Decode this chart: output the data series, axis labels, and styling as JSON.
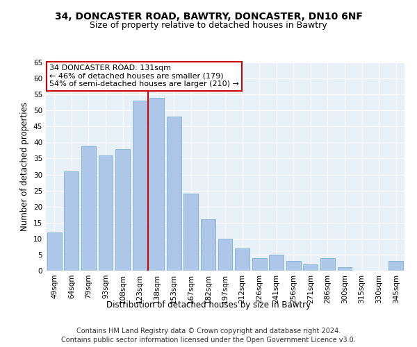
{
  "title_line1": "34, DONCASTER ROAD, BAWTRY, DONCASTER, DN10 6NF",
  "title_line2": "Size of property relative to detached houses in Bawtry",
  "xlabel": "Distribution of detached houses by size in Bawtry",
  "ylabel": "Number of detached properties",
  "categories": [
    "49sqm",
    "64sqm",
    "79sqm",
    "93sqm",
    "108sqm",
    "123sqm",
    "138sqm",
    "153sqm",
    "167sqm",
    "182sqm",
    "197sqm",
    "212sqm",
    "226sqm",
    "241sqm",
    "256sqm",
    "271sqm",
    "286sqm",
    "300sqm",
    "315sqm",
    "330sqm",
    "345sqm"
  ],
  "values": [
    12,
    31,
    39,
    36,
    38,
    53,
    54,
    48,
    24,
    16,
    10,
    7,
    4,
    5,
    3,
    2,
    4,
    1,
    0,
    0,
    3
  ],
  "bar_color": "#aec6e8",
  "bar_edge_color": "#7bafd4",
  "vline_x": 5.5,
  "vline_color": "#cc0000",
  "annotation_text": "34 DONCASTER ROAD: 131sqm\n← 46% of detached houses are smaller (179)\n54% of semi-detached houses are larger (210) →",
  "annotation_box_color": "#ffffff",
  "annotation_box_edge": "#cc0000",
  "ylim": [
    0,
    65
  ],
  "yticks": [
    0,
    5,
    10,
    15,
    20,
    25,
    30,
    35,
    40,
    45,
    50,
    55,
    60,
    65
  ],
  "bg_color": "#e8f0f8",
  "footer_line1": "Contains HM Land Registry data © Crown copyright and database right 2024.",
  "footer_line2": "Contains public sector information licensed under the Open Government Licence v3.0.",
  "title_fontsize": 10,
  "subtitle_fontsize": 9,
  "axis_label_fontsize": 8.5,
  "tick_fontsize": 7.5,
  "annotation_fontsize": 8,
  "footer_fontsize": 7
}
